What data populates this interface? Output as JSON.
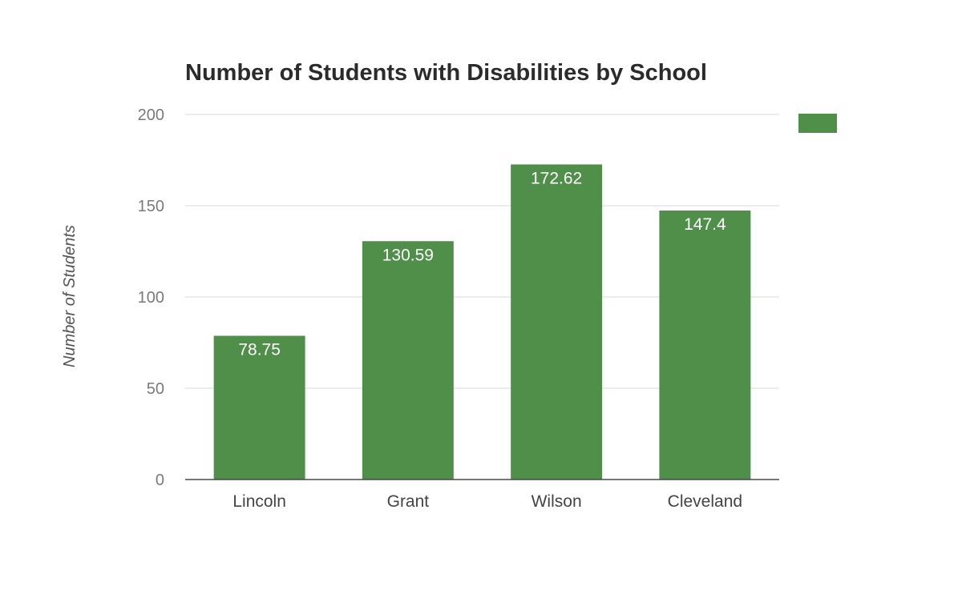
{
  "chart_data": {
    "type": "bar",
    "title": "Number of Students with Disabilities by School",
    "xlabel": "",
    "ylabel": "Number of Students",
    "categories": [
      "Lincoln",
      "Grant",
      "Wilson",
      "Cleveland"
    ],
    "series": [
      {
        "values": [
          78.75,
          130.59,
          172.62,
          147.4
        ],
        "color": "#4f8f4a"
      }
    ],
    "data_labels": [
      "78.75",
      "130.59",
      "172.62",
      "147.4"
    ],
    "ylim": [
      0,
      200
    ],
    "yticks": [
      0,
      50,
      100,
      150,
      200
    ],
    "grid": true,
    "legend_position": "top-right"
  }
}
